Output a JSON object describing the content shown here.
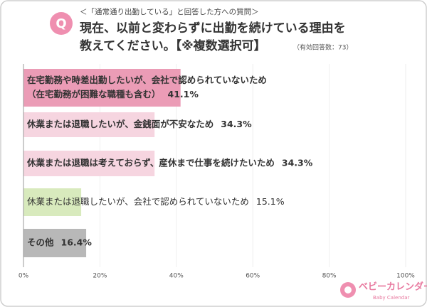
{
  "chart_data": {
    "type": "bar",
    "orientation": "horizontal",
    "subtitle": "＜「通常通り出勤している」と回答した方への質問＞",
    "badge": "Q",
    "title": [
      "現在、以前と変わらずに出勤を続けている理由を",
      "教えてください。【※複数選択可】"
    ],
    "note": "（有効回答数：73）",
    "categories": [
      [
        "在宅勤務や時差出勤したいが、会社で認められていないため",
        "（在宅勤務が困難な職種も含む）"
      ],
      [
        "休業または退職したいが、金銭面が不安なため"
      ],
      [
        "休業または退職は考えておらず、産休まで仕事を続けたいため"
      ],
      [
        "休業または退職したいが、会社で認められていないため"
      ],
      [
        "その他"
      ]
    ],
    "values": [
      41.1,
      34.3,
      34.3,
      15.1,
      16.4
    ],
    "value_labels": [
      "41.1%",
      "34.3%",
      "34.3%",
      "15.1%",
      "16.4%"
    ],
    "colors": [
      "#eb9cb6",
      "#f6d5e0",
      "#f6d5e0",
      "#d8eabd",
      "#b8b8b8"
    ],
    "xlim": [
      0,
      100
    ],
    "xticks": [
      {
        "value": 0,
        "label": "0%"
      },
      {
        "value": 20,
        "label": "20%"
      },
      {
        "value": 40,
        "label": "40%"
      },
      {
        "value": 60,
        "label": "60%"
      },
      {
        "value": 80,
        "label": "80%"
      },
      {
        "value": 100,
        "label": "100%"
      }
    ],
    "grid": true,
    "logo": {
      "name": "ベビーカレンダー",
      "sub": "Baby Calendar"
    }
  }
}
